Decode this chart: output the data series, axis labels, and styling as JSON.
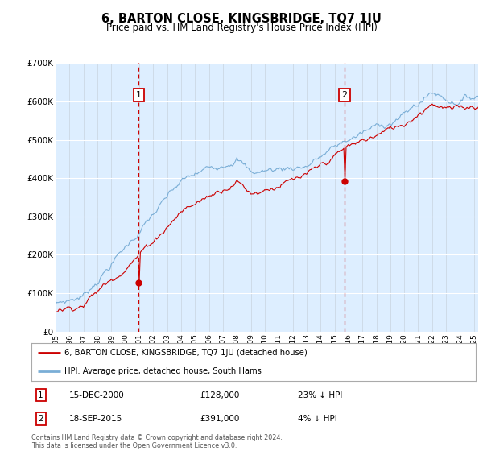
{
  "title": "6, BARTON CLOSE, KINGSBRIDGE, TQ7 1JU",
  "subtitle": "Price paid vs. HM Land Registry's House Price Index (HPI)",
  "plot_bg_color": "#ddeeff",
  "ylim": [
    0,
    700000
  ],
  "yticks": [
    0,
    100000,
    200000,
    300000,
    400000,
    500000,
    600000,
    700000
  ],
  "ytick_labels": [
    "£0",
    "£100K",
    "£200K",
    "£300K",
    "£400K",
    "£500K",
    "£600K",
    "£700K"
  ],
  "xstart_year": 1995,
  "xend_year": 2025,
  "sale1_date": 2000.96,
  "sale1_price": 128000,
  "sale1_label": "1",
  "sale1_text": "15-DEC-2000",
  "sale1_price_text": "£128,000",
  "sale1_hpi_text": "23% ↓ HPI",
  "sale2_date": 2015.72,
  "sale2_price": 391000,
  "sale2_label": "2",
  "sale2_text": "18-SEP-2015",
  "sale2_price_text": "£391,000",
  "sale2_hpi_text": "4% ↓ HPI",
  "red_line_color": "#cc0000",
  "blue_line_color": "#7aaed6",
  "legend_label_red": "6, BARTON CLOSE, KINGSBRIDGE, TQ7 1JU (detached house)",
  "legend_label_blue": "HPI: Average price, detached house, South Hams",
  "footer_text": "Contains HM Land Registry data © Crown copyright and database right 2024.\nThis data is licensed under the Open Government Licence v3.0."
}
